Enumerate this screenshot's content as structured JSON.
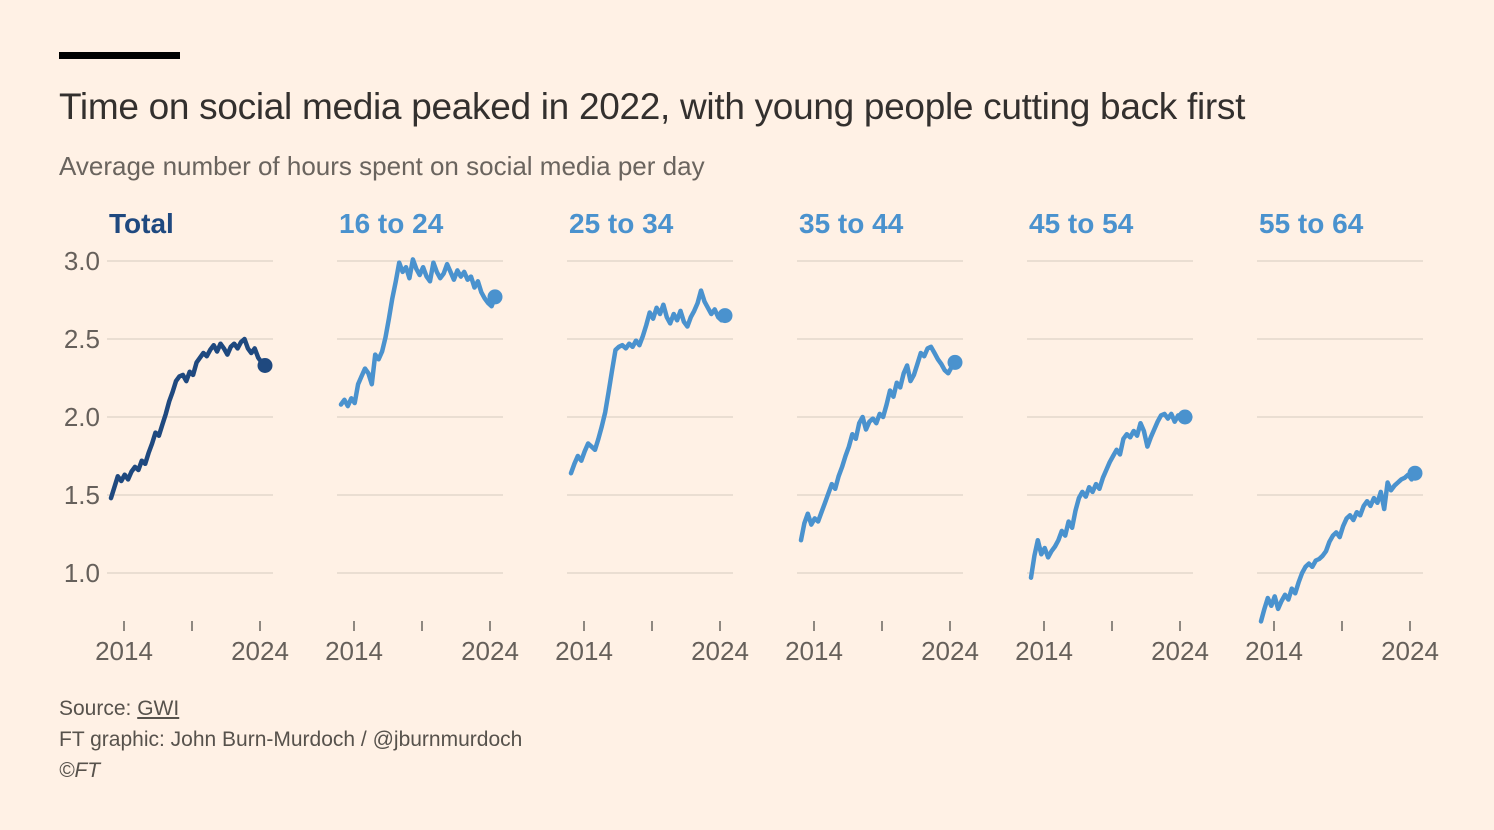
{
  "header": {
    "title": "Time on social media peaked in 2022, with young people cutting back first",
    "subtitle": "Average number of hours spent on social media per day"
  },
  "footer": {
    "source_label": "Source: ",
    "source_name": "GWI",
    "credit": "FT graphic: John Burn-Murdoch / @jburnmurdoch",
    "copyright": "©FT"
  },
  "colors": {
    "background": "#FFF1E5",
    "brand_bar": "#000000",
    "title_text": "#33302E",
    "muted_text": "#66605B",
    "footer_text": "#57524C",
    "grid_line": "#D5CABF",
    "tick_mark": "#8F8880",
    "total_line": "#1F497F",
    "age_line": "#4A92CE"
  },
  "chart_data": {
    "type": "line",
    "title": "Time on social media peaked in 2022, with young people cutting back first",
    "subtitle": "Average number of hours spent on social media per day",
    "layout": "small-multiples, 6 panels side by side, end-point dot on each line",
    "grid": "horizontal gridlines only",
    "x_start_year": 2013.0,
    "x_step_years": 0.25,
    "x_tick_years": [
      2014,
      2019,
      2024
    ],
    "x_tick_labels": [
      "2014",
      "2024"
    ],
    "y_ticks": [
      3.0,
      2.5,
      2.0,
      1.5,
      1.0
    ],
    "y_tick_labels": [
      "3.0",
      "2.5",
      "2.0",
      "1.5",
      "1.0"
    ],
    "ylim": [
      0.65,
      3.05
    ],
    "panels": [
      {
        "label": "Total",
        "color": "#1F497F",
        "last_value": 2.33,
        "values": [
          1.48,
          1.55,
          1.62,
          1.59,
          1.63,
          1.6,
          1.65,
          1.68,
          1.66,
          1.72,
          1.7,
          1.77,
          1.83,
          1.9,
          1.88,
          1.95,
          2.02,
          2.1,
          2.16,
          2.23,
          2.26,
          2.27,
          2.23,
          2.29,
          2.27,
          2.35,
          2.38,
          2.41,
          2.39,
          2.43,
          2.46,
          2.42,
          2.47,
          2.44,
          2.4,
          2.45,
          2.47,
          2.44,
          2.48,
          2.5,
          2.44,
          2.41,
          2.44,
          2.38,
          2.35,
          2.33
        ]
      },
      {
        "label": "16 to 24",
        "color": "#4A92CE",
        "last_value": 2.77,
        "values": [
          2.08,
          2.11,
          2.07,
          2.12,
          2.09,
          2.21,
          2.26,
          2.31,
          2.28,
          2.21,
          2.4,
          2.37,
          2.42,
          2.51,
          2.63,
          2.76,
          2.87,
          2.99,
          2.93,
          2.96,
          2.89,
          3.01,
          2.95,
          2.91,
          2.96,
          2.9,
          2.87,
          2.99,
          2.93,
          2.89,
          2.92,
          2.98,
          2.93,
          2.88,
          2.94,
          2.9,
          2.93,
          2.88,
          2.9,
          2.83,
          2.87,
          2.8,
          2.76,
          2.73,
          2.71,
          2.77
        ]
      },
      {
        "label": "25 to 34",
        "color": "#4A92CE",
        "last_value": 2.65,
        "values": [
          1.64,
          1.7,
          1.75,
          1.72,
          1.78,
          1.83,
          1.81,
          1.79,
          1.86,
          1.94,
          2.03,
          2.16,
          2.3,
          2.43,
          2.45,
          2.46,
          2.44,
          2.47,
          2.45,
          2.49,
          2.46,
          2.52,
          2.59,
          2.67,
          2.63,
          2.7,
          2.66,
          2.72,
          2.64,
          2.6,
          2.66,
          2.62,
          2.68,
          2.61,
          2.58,
          2.64,
          2.68,
          2.73,
          2.81,
          2.74,
          2.7,
          2.66,
          2.69,
          2.64,
          2.62,
          2.65
        ]
      },
      {
        "label": "35 to 44",
        "color": "#4A92CE",
        "last_value": 2.35,
        "values": [
          1.21,
          1.32,
          1.38,
          1.31,
          1.35,
          1.33,
          1.39,
          1.45,
          1.51,
          1.57,
          1.54,
          1.62,
          1.68,
          1.75,
          1.81,
          1.89,
          1.86,
          1.96,
          2.0,
          1.92,
          1.97,
          1.99,
          1.96,
          2.02,
          2.0,
          2.08,
          2.17,
          2.13,
          2.22,
          2.19,
          2.28,
          2.33,
          2.23,
          2.27,
          2.34,
          2.41,
          2.39,
          2.44,
          2.45,
          2.41,
          2.37,
          2.34,
          2.3,
          2.28,
          2.32,
          2.35
        ]
      },
      {
        "label": "45 to 54",
        "color": "#4A92CE",
        "last_value": 2.0,
        "values": [
          0.97,
          1.11,
          1.21,
          1.12,
          1.16,
          1.1,
          1.14,
          1.17,
          1.21,
          1.27,
          1.24,
          1.33,
          1.29,
          1.4,
          1.48,
          1.52,
          1.49,
          1.55,
          1.52,
          1.57,
          1.54,
          1.61,
          1.66,
          1.71,
          1.75,
          1.79,
          1.76,
          1.86,
          1.89,
          1.87,
          1.91,
          1.88,
          1.96,
          1.91,
          1.81,
          1.87,
          1.92,
          1.97,
          2.01,
          2.02,
          1.99,
          2.02,
          1.97,
          2.01,
          1.98,
          2.0
        ]
      },
      {
        "label": "55 to 64",
        "color": "#4A92CE",
        "last_value": 1.64,
        "values": [
          0.69,
          0.77,
          0.84,
          0.79,
          0.85,
          0.77,
          0.82,
          0.86,
          0.83,
          0.9,
          0.87,
          0.94,
          1.0,
          1.04,
          1.06,
          1.04,
          1.08,
          1.09,
          1.11,
          1.14,
          1.2,
          1.24,
          1.26,
          1.23,
          1.3,
          1.35,
          1.37,
          1.34,
          1.39,
          1.37,
          1.43,
          1.46,
          1.43,
          1.48,
          1.45,
          1.52,
          1.41,
          1.58,
          1.53,
          1.56,
          1.58,
          1.6,
          1.61,
          1.63,
          1.6,
          1.64
        ]
      }
    ]
  }
}
